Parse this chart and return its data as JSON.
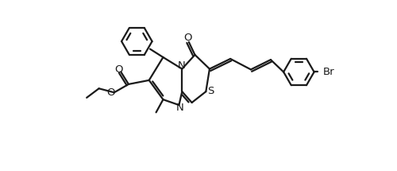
{
  "bg_color": "#ffffff",
  "line_color": "#1a1a1a",
  "bond_lw": 1.6,
  "font_size": 9.5,
  "fig_width": 5.0,
  "fig_height": 2.15,
  "dpi": 100,
  "xlim": [
    0,
    10
  ],
  "ylim": [
    0,
    4.3
  ]
}
